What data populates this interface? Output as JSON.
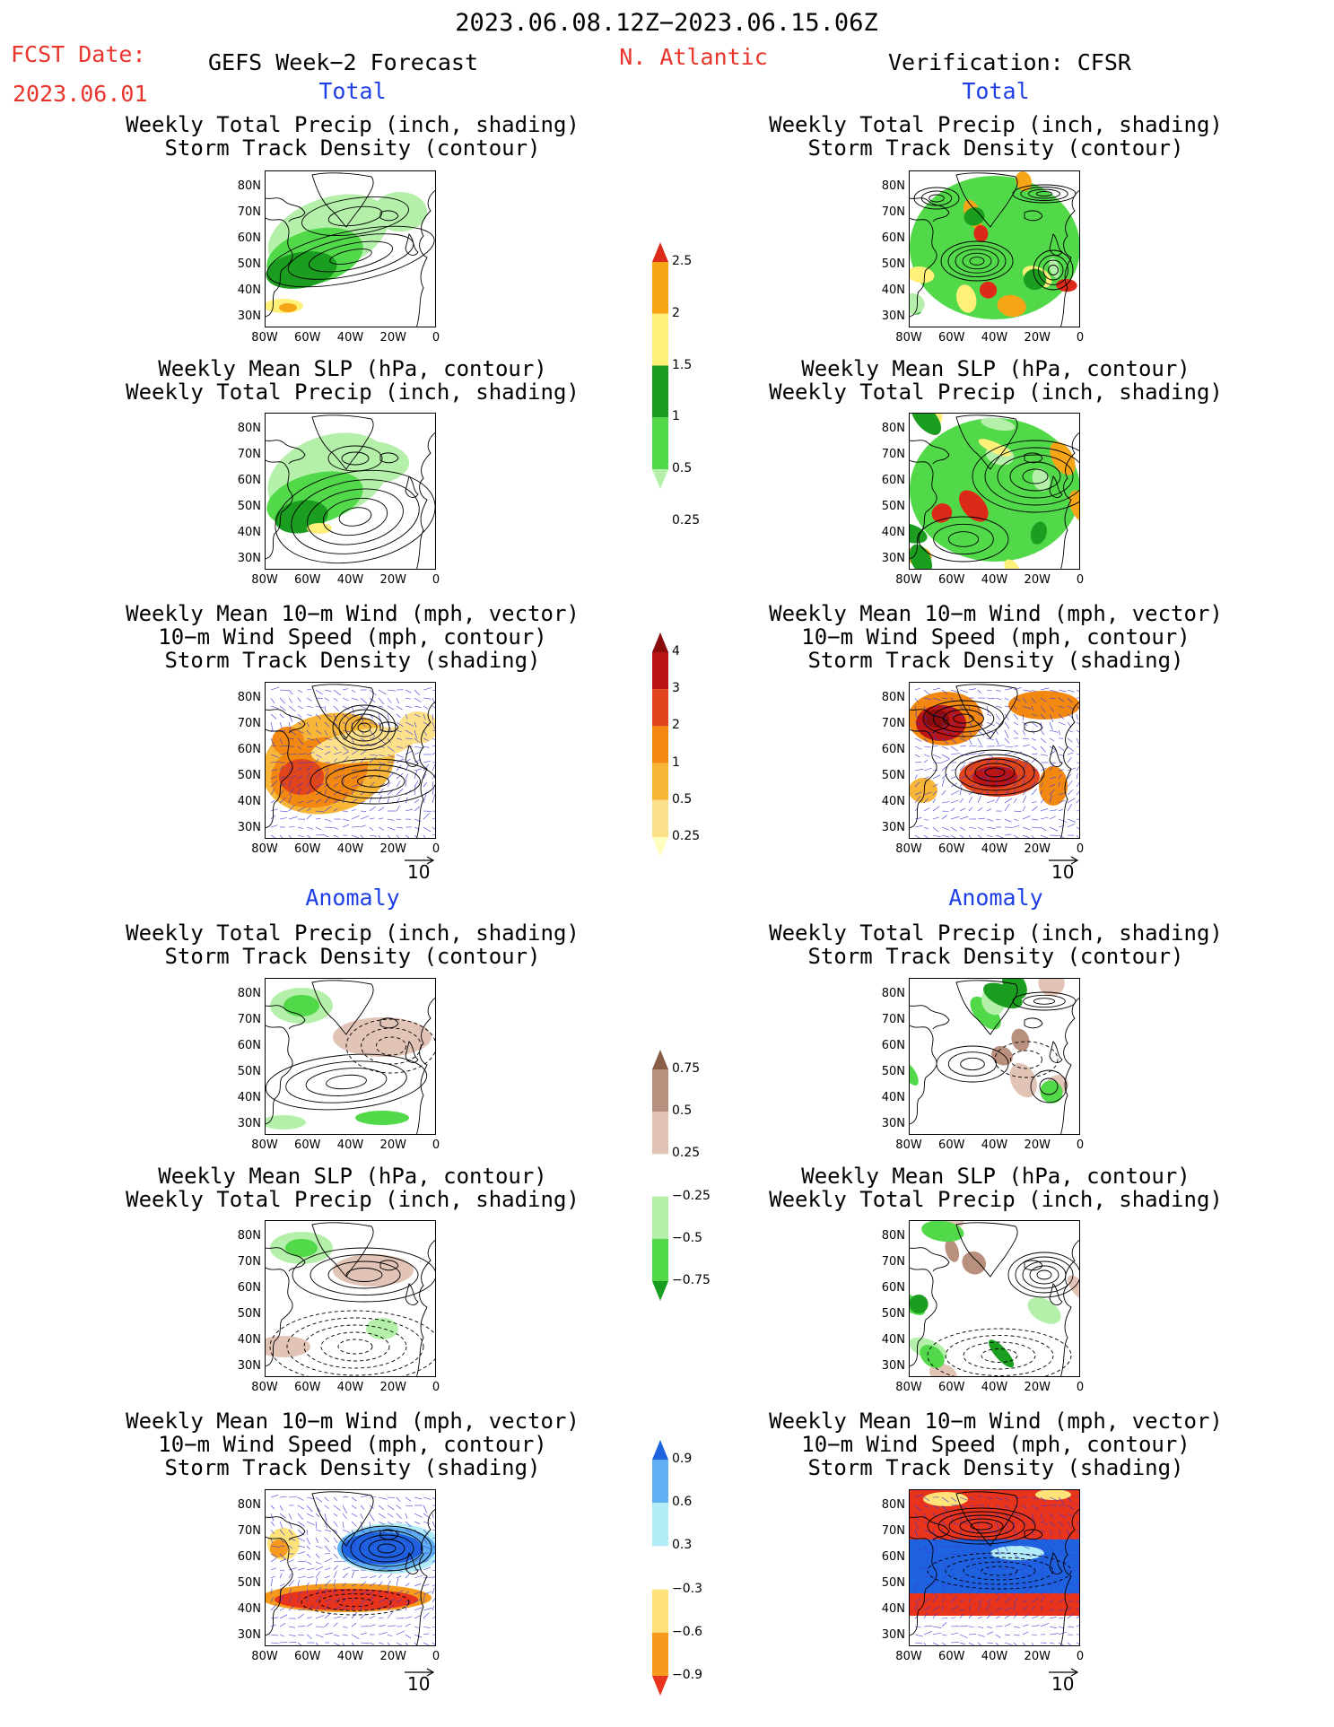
{
  "header": {
    "date_range": "2023.06.08.12Z−2023.06.15.06Z",
    "fcst_label": "FCST Date:",
    "fcst_date": "2023.06.01",
    "left_title": "GEFS Week−2 Forecast",
    "region": "N. Atlantic",
    "right_title": "Verification: CFSR",
    "total_label": "Total",
    "anomaly_label": "Anomaly"
  },
  "panel_titles": {
    "precip_track": [
      "Weekly Total Precip (inch, shading)",
      "Storm Track Density (contour)"
    ],
    "slp_precip": [
      "Weekly Mean SLP (hPa, contour)",
      "Weekly Total Precip (inch, shading)"
    ],
    "wind_track": [
      "Weekly Mean 10−m Wind (mph, vector)",
      "10−m Wind Speed (mph, contour)",
      "Storm Track Density (shading)"
    ]
  },
  "axes": {
    "lat_ticks": [
      "80N",
      "70N",
      "60N",
      "50N",
      "40N",
      "30N"
    ],
    "lon_ticks": [
      "80W",
      "60W",
      "40W",
      "20W",
      "0"
    ],
    "vector_ref": "10"
  },
  "colors": {
    "title_red": "#e8342a",
    "title_blue": "#1e3fe6"
  },
  "chart_data": [
    {
      "type": "heatmap",
      "name": "precip_total_colorbar",
      "levels": [
        "0.25",
        "0.5",
        "1",
        "1.5",
        "2",
        "2.5"
      ],
      "colors": [
        "#b4f0aa",
        "#52d94a",
        "#1b9e20",
        "#fff07a",
        "#f5a516",
        "#dd2a18"
      ]
    },
    {
      "type": "heatmap",
      "name": "track_total_colorbar",
      "levels": [
        "0.25",
        "0.5",
        "1",
        "2",
        "3",
        "4"
      ],
      "colors": [
        "#ffffbf",
        "#fde08a",
        "#f8b638",
        "#f2880f",
        "#e0451b",
        "#bb1414",
        "#8a0b0b"
      ]
    },
    {
      "type": "heatmap",
      "name": "precip_anomaly_colorbar",
      "levels": [
        "0.75",
        "0.5",
        "0.25",
        "−0.25",
        "−0.5",
        "−0.75"
      ],
      "colors": [
        "#1b9e20",
        "#52d94a",
        "#b4f0aa",
        "#ffffff",
        "#e2c4b7",
        "#b98f7d",
        "#8a5c48"
      ]
    },
    {
      "type": "heatmap",
      "name": "track_anomaly_colorbar",
      "levels": [
        "0.9",
        "0.6",
        "0.3",
        "−0.3",
        "−0.6",
        "−0.9"
      ],
      "colors": [
        "#e8341c",
        "#f59a1c",
        "#ffe27a",
        "#ffffff",
        "#b2ecf7",
        "#5fb0f2",
        "#1e62e0"
      ]
    }
  ]
}
